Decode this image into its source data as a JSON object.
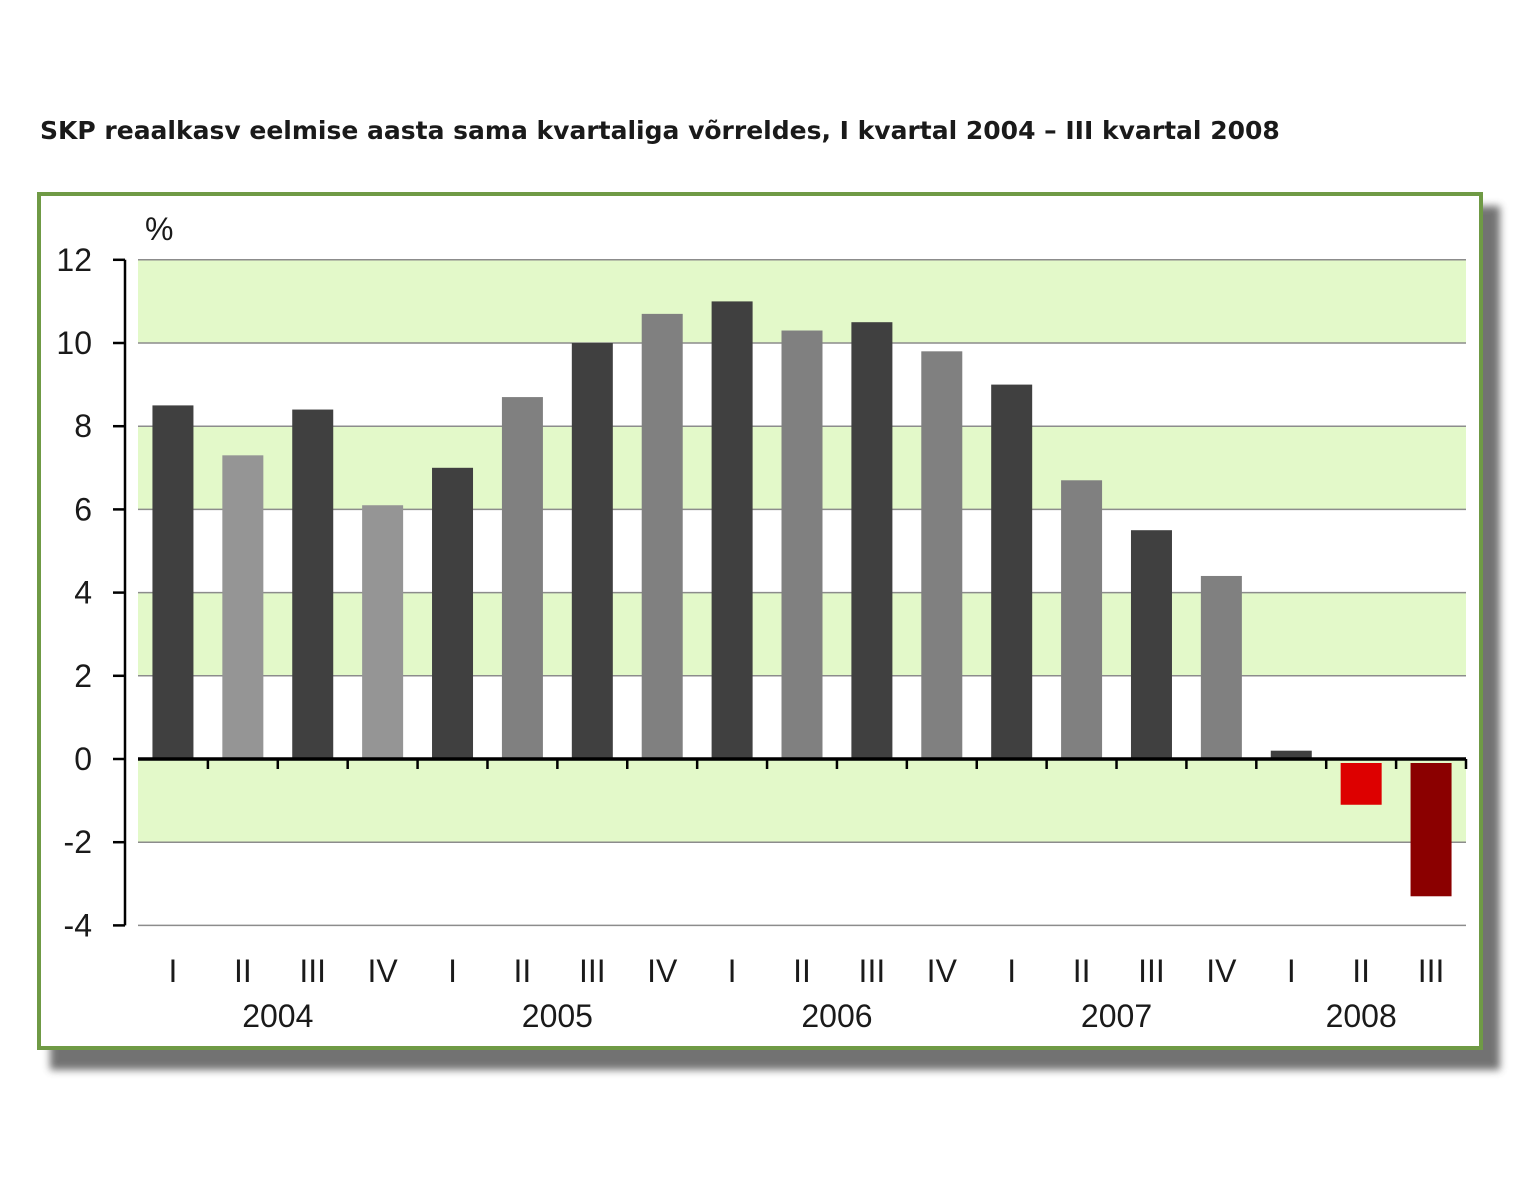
{
  "chart_data": {
    "type": "bar",
    "title": "SKP reaalkasv eelmise aasta sama kvartaliga võrreldes, I kvartal 2004 – III kvartal 2008",
    "ylabel": "%",
    "xlabel": "",
    "ylim": [
      -4,
      12
    ],
    "yticks": [
      12,
      10,
      8,
      6,
      4,
      2,
      0,
      -2,
      -4
    ],
    "grid": "horizontal bands",
    "categories": [
      "I",
      "II",
      "III",
      "IV",
      "I",
      "II",
      "III",
      "IV",
      "I",
      "II",
      "III",
      "IV",
      "I",
      "II",
      "III",
      "IV",
      "I",
      "II",
      "III"
    ],
    "years": [
      {
        "label": "2004",
        "quarters": 4
      },
      {
        "label": "2005",
        "quarters": 4
      },
      {
        "label": "2006",
        "quarters": 4
      },
      {
        "label": "2007",
        "quarters": 4
      },
      {
        "label": "2008",
        "quarters": 3
      }
    ],
    "values": [
      8.5,
      7.3,
      8.4,
      6.1,
      7.0,
      8.7,
      10.0,
      10.7,
      11.0,
      10.3,
      10.5,
      9.8,
      9.0,
      6.7,
      5.5,
      4.4,
      0.2,
      -1.1,
      -3.3
    ],
    "bar_colors": [
      "#404040",
      "#959595",
      "#404040",
      "#959595",
      "#404040",
      "#808080",
      "#404040",
      "#808080",
      "#404040",
      "#808080",
      "#404040",
      "#808080",
      "#404040",
      "#808080",
      "#404040",
      "#808080",
      "#404040",
      "#dd0000",
      "#8b0000"
    ],
    "colors": {
      "band": "#e3f9c9",
      "gridline": "#8c8c8c",
      "frame": "#6f9a45"
    }
  }
}
